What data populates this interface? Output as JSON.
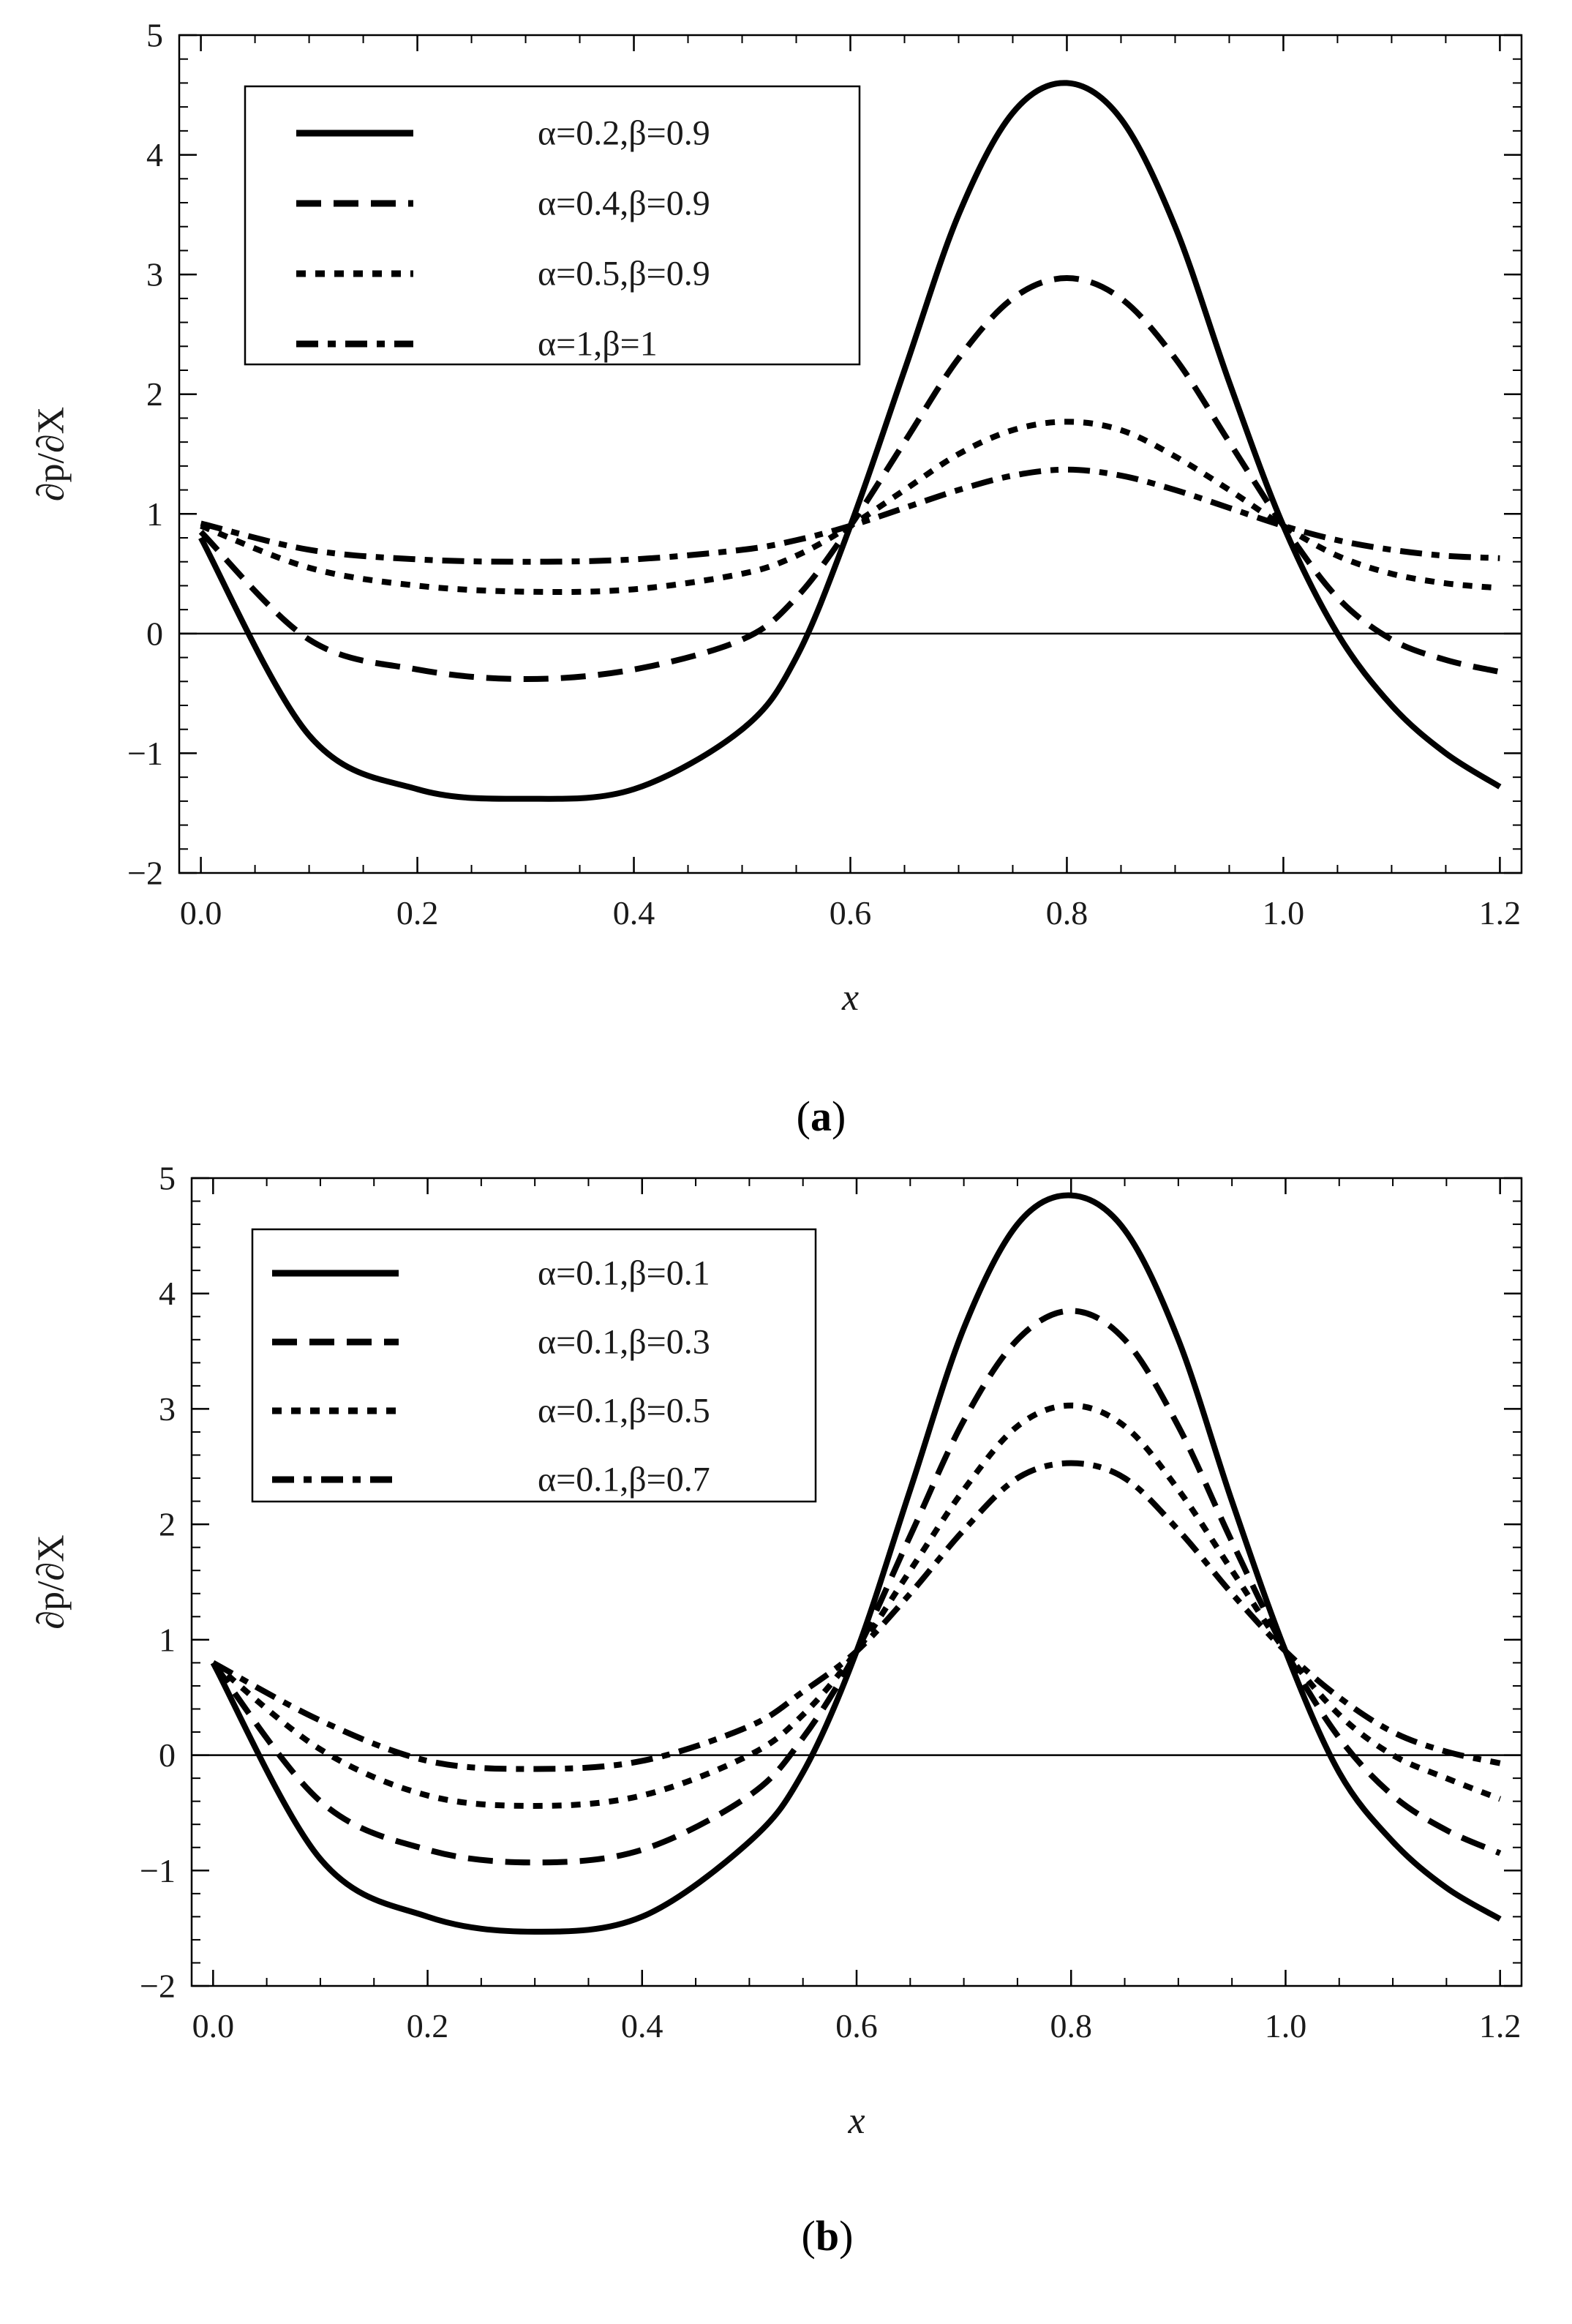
{
  "figure": {
    "background": "#ffffff",
    "line_color": "#000000"
  },
  "chart_data": [
    {
      "id": "a",
      "type": "line",
      "caption": {
        "open": "(",
        "letter": "a",
        "close": ")"
      },
      "xlabel": "x",
      "ylabel": "∂p/∂X",
      "xlim": [
        -0.02,
        1.22
      ],
      "ylim": [
        -2,
        5
      ],
      "xticks": [
        0.0,
        0.2,
        0.4,
        0.6,
        0.8,
        1.0,
        1.2
      ],
      "xtick_labels": [
        "0.0",
        "0.2",
        "0.4",
        "0.6",
        "0.8",
        "1.0",
        "1.2"
      ],
      "yticks": [
        -2,
        -1,
        0,
        1,
        2,
        3,
        4,
        5
      ],
      "ytick_labels": [
        "−2",
        "−1",
        "0",
        "1",
        "2",
        "3",
        "4",
        "5"
      ],
      "x": [
        0.0,
        0.1,
        0.2,
        0.3,
        0.4,
        0.5,
        0.55,
        0.6,
        0.65,
        0.7,
        0.75,
        0.8,
        0.85,
        0.9,
        0.95,
        1.0,
        1.05,
        1.1,
        1.15,
        1.2
      ],
      "series": [
        {
          "name": "α=0.2,β=0.9",
          "style": "solid",
          "values": [
            0.8,
            -0.85,
            -1.3,
            -1.38,
            -1.3,
            -0.8,
            -0.2,
            0.9,
            2.2,
            3.5,
            4.35,
            4.6,
            4.3,
            3.4,
            2.1,
            0.9,
            0.0,
            -0.6,
            -1.0,
            -1.28
          ]
        },
        {
          "name": "α=0.4,β=0.9",
          "style": "dashed",
          "values": [
            0.85,
            -0.05,
            -0.3,
            -0.38,
            -0.3,
            -0.05,
            0.3,
            0.9,
            1.6,
            2.3,
            2.8,
            2.97,
            2.8,
            2.3,
            1.6,
            0.9,
            0.3,
            -0.05,
            -0.22,
            -0.32
          ]
        },
        {
          "name": "α=0.5,β=0.9",
          "style": "dotted",
          "values": [
            0.9,
            0.55,
            0.4,
            0.35,
            0.37,
            0.5,
            0.65,
            0.9,
            1.2,
            1.5,
            1.7,
            1.77,
            1.7,
            1.48,
            1.2,
            0.9,
            0.65,
            0.5,
            0.42,
            0.38
          ]
        },
        {
          "name": "α=1,β=1",
          "style": "dashdot",
          "values": [
            0.92,
            0.7,
            0.62,
            0.6,
            0.62,
            0.7,
            0.78,
            0.9,
            1.05,
            1.2,
            1.32,
            1.37,
            1.32,
            1.2,
            1.05,
            0.9,
            0.78,
            0.7,
            0.65,
            0.63
          ]
        }
      ]
    },
    {
      "id": "b",
      "type": "line",
      "caption": {
        "open": "(",
        "letter": "b",
        "close": ")"
      },
      "xlabel": "x",
      "ylabel": "∂p/∂X",
      "xlim": [
        -0.02,
        1.22
      ],
      "ylim": [
        -2,
        5
      ],
      "xticks": [
        0.0,
        0.2,
        0.4,
        0.6,
        0.8,
        1.0,
        1.2
      ],
      "xtick_labels": [
        "0.0",
        "0.2",
        "0.4",
        "0.6",
        "0.8",
        "1.0",
        "1.2"
      ],
      "yticks": [
        -2,
        -1,
        0,
        1,
        2,
        3,
        4,
        5
      ],
      "ytick_labels": [
        "−2",
        "−1",
        "0",
        "1",
        "2",
        "3",
        "4",
        "5"
      ],
      "x": [
        0.0,
        0.1,
        0.2,
        0.3,
        0.4,
        0.5,
        0.55,
        0.6,
        0.65,
        0.7,
        0.75,
        0.8,
        0.85,
        0.9,
        0.95,
        1.0,
        1.05,
        1.1,
        1.15,
        1.2
      ],
      "series": [
        {
          "name": "α=0.1,β=0.1",
          "style": "solid",
          "values": [
            0.8,
            -0.9,
            -1.4,
            -1.53,
            -1.4,
            -0.75,
            -0.15,
            0.9,
            2.3,
            3.7,
            4.6,
            4.85,
            4.55,
            3.6,
            2.2,
            0.9,
            -0.15,
            -0.75,
            -1.15,
            -1.42
          ]
        },
        {
          "name": "α=0.1,β=0.3",
          "style": "dashed",
          "values": [
            0.8,
            -0.4,
            -0.82,
            -0.93,
            -0.82,
            -0.35,
            0.15,
            0.9,
            1.9,
            2.9,
            3.6,
            3.85,
            3.6,
            2.85,
            1.85,
            0.9,
            0.15,
            -0.35,
            -0.65,
            -0.85
          ]
        },
        {
          "name": "α=0.1,β=0.5",
          "style": "dotted",
          "values": [
            0.8,
            0.05,
            -0.35,
            -0.44,
            -0.35,
            0.0,
            0.35,
            0.9,
            1.6,
            2.3,
            2.85,
            3.03,
            2.85,
            2.3,
            1.6,
            0.9,
            0.35,
            0.0,
            -0.2,
            -0.38
          ]
        },
        {
          "name": "α=0.1,β=0.7",
          "style": "dashdot",
          "values": [
            0.8,
            0.3,
            -0.05,
            -0.12,
            -0.05,
            0.25,
            0.55,
            0.9,
            1.4,
            1.95,
            2.4,
            2.53,
            2.4,
            1.95,
            1.4,
            0.9,
            0.5,
            0.2,
            0.03,
            -0.07
          ]
        }
      ]
    }
  ]
}
